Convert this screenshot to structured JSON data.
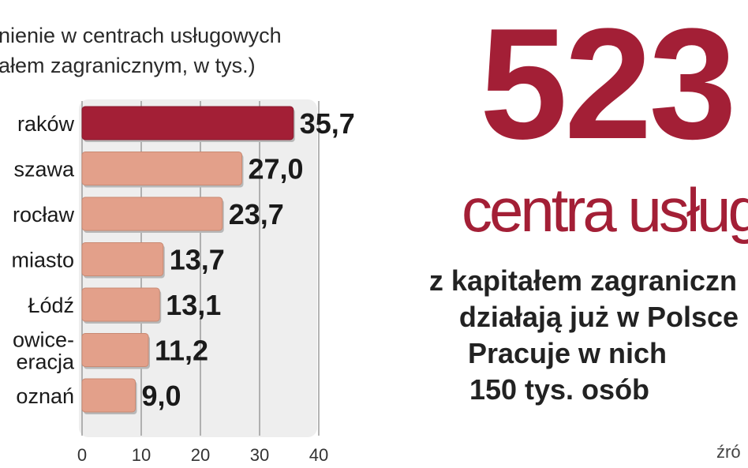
{
  "chart_data": {
    "type": "bar",
    "orientation": "horizontal",
    "subtitle_lines": [
      "nienie w centrach usługowych",
      "ałem zagranicznym, w tys.)"
    ],
    "categories": [
      "raków",
      "szawa",
      "rocław",
      "miasto",
      "Łódź",
      "owice-|eracja",
      "oznań"
    ],
    "values": [
      35.7,
      27.0,
      23.7,
      13.7,
      13.1,
      11.2,
      9.0
    ],
    "value_labels": [
      "35,7",
      "27,0",
      "23,7",
      "13,7",
      "13,1",
      "11,2",
      "9,0"
    ],
    "highlight_index": 0,
    "xlim": [
      0,
      40
    ],
    "xticks": [
      "0",
      "10",
      "20",
      "30",
      "40"
    ],
    "grid": true,
    "colors": {
      "highlight": "#a31f36",
      "bar": "#e3a08a",
      "panel": "#eeeeee",
      "grid": "#9c9c9c"
    }
  },
  "headline": {
    "number": "523",
    "label": "centra usług",
    "info_lines": [
      "z kapitałem zagraniczn",
      "działają już w Polsce",
      "Pracuje w nich",
      "150 tys. osób"
    ],
    "source": "źró"
  }
}
